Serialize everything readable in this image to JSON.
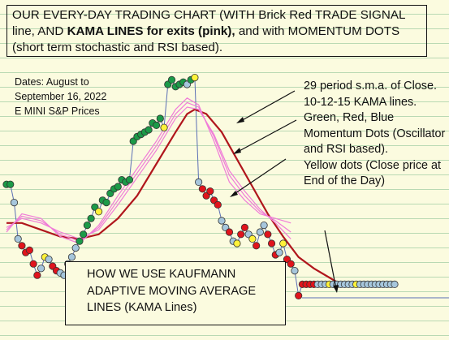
{
  "title": {
    "part1": "OUR EVERY-DAY TRADING CHART (WITH Brick Red TRADE SIGNAL line,",
    "part2": "AND",
    "part3_bold": "KAMA LINES for exits (pink),",
    "part4": "and with MOMENTUM DOTS (short term stochastic and RSI based)."
  },
  "dates": {
    "line1": "Dates: August to",
    "line2": "September 16, 2022",
    "line3": "E MINI S&P Prices"
  },
  "annotations": {
    "sma": "29 period s.m.a. of Close.",
    "kama": "10-12-15 KAMA lines.",
    "dots": "Green, Red, Blue Momentum Dots (Oscillator and RSI based).",
    "yellow": "Yellow dots (Close price at End of the Day)"
  },
  "how_box": "HOW WE USE KAUFMANN ADAPTIVE MOVING AVERAGE LINES (KAMA Lines)",
  "colors": {
    "background": "#fbfbdf",
    "grid": "#b9d9b3",
    "sma_line": "#b0161c",
    "kama_lines": "#f07cd8",
    "price_stem": "#5b6fb5",
    "green": "#1c9a48",
    "red": "#e0141c",
    "blue": "#a6c6dc",
    "yellow": "#fff23a"
  },
  "chart_data": {
    "type": "scatter",
    "title": "",
    "xlabel": "",
    "ylabel": "",
    "note": "",
    "price_dots": [
      {
        "x": 1,
        "y": 0.51,
        "c": "green"
      },
      {
        "x": 2,
        "y": 0.51,
        "c": "green"
      },
      {
        "x": 3,
        "y": 0.43,
        "c": "blue"
      },
      {
        "x": 4,
        "y": 0.27,
        "c": "blue"
      },
      {
        "x": 5,
        "y": 0.24,
        "c": "red"
      },
      {
        "x": 6,
        "y": 0.21,
        "c": "red"
      },
      {
        "x": 7,
        "y": 0.22,
        "c": "red"
      },
      {
        "x": 8,
        "y": 0.16,
        "c": "red"
      },
      {
        "x": 9,
        "y": 0.11,
        "c": "red"
      },
      {
        "x": 10,
        "y": 0.14,
        "c": "blue"
      },
      {
        "x": 11,
        "y": 0.19,
        "c": "yellow"
      },
      {
        "x": 12,
        "y": 0.18,
        "c": "blue"
      },
      {
        "x": 13,
        "y": 0.15,
        "c": "red"
      },
      {
        "x": 14,
        "y": 0.13,
        "c": "red"
      },
      {
        "x": 15,
        "y": 0.12,
        "c": "blue"
      },
      {
        "x": 16,
        "y": 0.11,
        "c": "blue"
      },
      {
        "x": 17,
        "y": 0.16,
        "c": "blue"
      },
      {
        "x": 18,
        "y": 0.19,
        "c": "blue"
      },
      {
        "x": 19,
        "y": 0.23,
        "c": "blue"
      },
      {
        "x": 20,
        "y": 0.26,
        "c": "green"
      },
      {
        "x": 21,
        "y": 0.29,
        "c": "green"
      },
      {
        "x": 22,
        "y": 0.33,
        "c": "green"
      },
      {
        "x": 23,
        "y": 0.36,
        "c": "green"
      },
      {
        "x": 24,
        "y": 0.41,
        "c": "green"
      },
      {
        "x": 25,
        "y": 0.39,
        "c": "yellow"
      },
      {
        "x": 26,
        "y": 0.44,
        "c": "green"
      },
      {
        "x": 27,
        "y": 0.43,
        "c": "green"
      },
      {
        "x": 28,
        "y": 0.47,
        "c": "green"
      },
      {
        "x": 29,
        "y": 0.49,
        "c": "green"
      },
      {
        "x": 30,
        "y": 0.5,
        "c": "green"
      },
      {
        "x": 31,
        "y": 0.53,
        "c": "green"
      },
      {
        "x": 32,
        "y": 0.52,
        "c": "green"
      },
      {
        "x": 33,
        "y": 0.53,
        "c": "green"
      },
      {
        "x": 34,
        "y": 0.7,
        "c": "green"
      },
      {
        "x": 35,
        "y": 0.72,
        "c": "green"
      },
      {
        "x": 36,
        "y": 0.73,
        "c": "green"
      },
      {
        "x": 37,
        "y": 0.74,
        "c": "green"
      },
      {
        "x": 38,
        "y": 0.75,
        "c": "green"
      },
      {
        "x": 39,
        "y": 0.78,
        "c": "green"
      },
      {
        "x": 40,
        "y": 0.77,
        "c": "green"
      },
      {
        "x": 41,
        "y": 0.8,
        "c": "green"
      },
      {
        "x": 42,
        "y": 0.76,
        "c": "yellow"
      },
      {
        "x": 43,
        "y": 0.95,
        "c": "green"
      },
      {
        "x": 44,
        "y": 0.97,
        "c": "green"
      },
      {
        "x": 45,
        "y": 0.94,
        "c": "green"
      },
      {
        "x": 46,
        "y": 0.95,
        "c": "green"
      },
      {
        "x": 47,
        "y": 0.96,
        "c": "green"
      },
      {
        "x": 48,
        "y": 0.95,
        "c": "blue"
      },
      {
        "x": 49,
        "y": 0.97,
        "c": "green"
      },
      {
        "x": 50,
        "y": 0.98,
        "c": "yellow"
      },
      {
        "x": 51,
        "y": 0.52,
        "c": "blue"
      },
      {
        "x": 52,
        "y": 0.49,
        "c": "red"
      },
      {
        "x": 53,
        "y": 0.46,
        "c": "red"
      },
      {
        "x": 54,
        "y": 0.48,
        "c": "red"
      },
      {
        "x": 55,
        "y": 0.44,
        "c": "red"
      },
      {
        "x": 56,
        "y": 0.42,
        "c": "red"
      },
      {
        "x": 57,
        "y": 0.35,
        "c": "blue"
      },
      {
        "x": 58,
        "y": 0.32,
        "c": "blue"
      },
      {
        "x": 59,
        "y": 0.3,
        "c": "red"
      },
      {
        "x": 60,
        "y": 0.26,
        "c": "blue"
      },
      {
        "x": 61,
        "y": 0.25,
        "c": "yellow"
      },
      {
        "x": 62,
        "y": 0.29,
        "c": "red"
      },
      {
        "x": 63,
        "y": 0.32,
        "c": "red"
      },
      {
        "x": 64,
        "y": 0.29,
        "c": "blue"
      },
      {
        "x": 65,
        "y": 0.27,
        "c": "yellow"
      },
      {
        "x": 66,
        "y": 0.24,
        "c": "red"
      },
      {
        "x": 67,
        "y": 0.3,
        "c": "blue"
      },
      {
        "x": 68,
        "y": 0.33,
        "c": "blue"
      },
      {
        "x": 69,
        "y": 0.29,
        "c": "red"
      },
      {
        "x": 70,
        "y": 0.25,
        "c": "red"
      },
      {
        "x": 71,
        "y": 0.2,
        "c": "red"
      },
      {
        "x": 72,
        "y": 0.21,
        "c": "blue"
      },
      {
        "x": 73,
        "y": 0.25,
        "c": "yellow"
      },
      {
        "x": 74,
        "y": 0.18,
        "c": "red"
      },
      {
        "x": 75,
        "y": 0.16,
        "c": "red"
      },
      {
        "x": 76,
        "y": 0.13,
        "c": "blue"
      },
      {
        "x": 77,
        "y": 0.02,
        "c": "red"
      },
      {
        "x": 78,
        "y": 0.07,
        "c": "red"
      },
      {
        "x": 79,
        "y": 0.07,
        "c": "red"
      },
      {
        "x": 80,
        "y": 0.07,
        "c": "red"
      },
      {
        "x": 81,
        "y": 0.07,
        "c": "red"
      },
      {
        "x": 82,
        "y": 0.07,
        "c": "blue"
      },
      {
        "x": 83,
        "y": 0.07,
        "c": "blue"
      },
      {
        "x": 84,
        "y": 0.07,
        "c": "blue"
      },
      {
        "x": 85,
        "y": 0.07,
        "c": "yellow"
      },
      {
        "x": 86,
        "y": 0.07,
        "c": "blue"
      },
      {
        "x": 87,
        "y": 0.07,
        "c": "blue"
      },
      {
        "x": 88,
        "y": 0.07,
        "c": "blue"
      },
      {
        "x": 89,
        "y": 0.07,
        "c": "blue"
      },
      {
        "x": 90,
        "y": 0.07,
        "c": "blue"
      },
      {
        "x": 91,
        "y": 0.07,
        "c": "blue"
      },
      {
        "x": 92,
        "y": 0.07,
        "c": "yellow"
      },
      {
        "x": 93,
        "y": 0.07,
        "c": "blue"
      },
      {
        "x": 94,
        "y": 0.07,
        "c": "blue"
      },
      {
        "x": 95,
        "y": 0.07,
        "c": "blue"
      },
      {
        "x": 96,
        "y": 0.07,
        "c": "blue"
      },
      {
        "x": 97,
        "y": 0.07,
        "c": "blue"
      },
      {
        "x": 98,
        "y": 0.07,
        "c": "blue"
      },
      {
        "x": 99,
        "y": 0.07,
        "c": "blue"
      },
      {
        "x": 100,
        "y": 0.07,
        "c": "blue"
      },
      {
        "x": 101,
        "y": 0.07,
        "c": "blue"
      },
      {
        "x": 102,
        "y": 0.07,
        "c": "blue"
      }
    ],
    "sma": [
      {
        "x": 1,
        "y": 0.34
      },
      {
        "x": 5,
        "y": 0.34
      },
      {
        "x": 10,
        "y": 0.31
      },
      {
        "x": 15,
        "y": 0.28
      },
      {
        "x": 20,
        "y": 0.27
      },
      {
        "x": 25,
        "y": 0.29
      },
      {
        "x": 30,
        "y": 0.36
      },
      {
        "x": 35,
        "y": 0.46
      },
      {
        "x": 40,
        "y": 0.6
      },
      {
        "x": 45,
        "y": 0.74
      },
      {
        "x": 48,
        "y": 0.82
      },
      {
        "x": 50,
        "y": 0.84
      },
      {
        "x": 53,
        "y": 0.82
      },
      {
        "x": 57,
        "y": 0.74
      },
      {
        "x": 61,
        "y": 0.62
      },
      {
        "x": 65,
        "y": 0.5
      },
      {
        "x": 69,
        "y": 0.38
      },
      {
        "x": 73,
        "y": 0.28
      },
      {
        "x": 77,
        "y": 0.19
      },
      {
        "x": 81,
        "y": 0.14
      },
      {
        "x": 85,
        "y": 0.1
      },
      {
        "x": 88,
        "y": 0.07
      },
      {
        "x": 91,
        "y": 0.06
      },
      {
        "x": 94,
        "y": 0.06
      },
      {
        "x": 102,
        "y": 0.06
      }
    ],
    "kama": [
      [
        {
          "x": 1,
          "y": 0.3
        },
        {
          "x": 5,
          "y": 0.38
        },
        {
          "x": 10,
          "y": 0.36
        },
        {
          "x": 15,
          "y": 0.28
        },
        {
          "x": 20,
          "y": 0.25
        },
        {
          "x": 25,
          "y": 0.33
        },
        {
          "x": 30,
          "y": 0.46
        },
        {
          "x": 35,
          "y": 0.58
        },
        {
          "x": 40,
          "y": 0.7
        },
        {
          "x": 45,
          "y": 0.84
        },
        {
          "x": 48,
          "y": 0.89
        },
        {
          "x": 51,
          "y": 0.86
        },
        {
          "x": 55,
          "y": 0.7
        },
        {
          "x": 59,
          "y": 0.52
        },
        {
          "x": 63,
          "y": 0.44
        },
        {
          "x": 67,
          "y": 0.38
        },
        {
          "x": 71,
          "y": 0.36
        },
        {
          "x": 75,
          "y": 0.34
        }
      ],
      [
        {
          "x": 1,
          "y": 0.31
        },
        {
          "x": 5,
          "y": 0.37
        },
        {
          "x": 10,
          "y": 0.35
        },
        {
          "x": 15,
          "y": 0.29
        },
        {
          "x": 20,
          "y": 0.26
        },
        {
          "x": 25,
          "y": 0.32
        },
        {
          "x": 30,
          "y": 0.44
        },
        {
          "x": 35,
          "y": 0.56
        },
        {
          "x": 40,
          "y": 0.68
        },
        {
          "x": 45,
          "y": 0.82
        },
        {
          "x": 48,
          "y": 0.87
        },
        {
          "x": 51,
          "y": 0.85
        },
        {
          "x": 55,
          "y": 0.72
        },
        {
          "x": 59,
          "y": 0.55
        },
        {
          "x": 63,
          "y": 0.46
        },
        {
          "x": 67,
          "y": 0.39
        },
        {
          "x": 71,
          "y": 0.35
        },
        {
          "x": 75,
          "y": 0.3
        }
      ],
      [
        {
          "x": 1,
          "y": 0.32
        },
        {
          "x": 5,
          "y": 0.36
        },
        {
          "x": 10,
          "y": 0.34
        },
        {
          "x": 15,
          "y": 0.3
        },
        {
          "x": 20,
          "y": 0.27
        },
        {
          "x": 25,
          "y": 0.31
        },
        {
          "x": 30,
          "y": 0.42
        },
        {
          "x": 35,
          "y": 0.54
        },
        {
          "x": 40,
          "y": 0.66
        },
        {
          "x": 45,
          "y": 0.8
        },
        {
          "x": 48,
          "y": 0.85
        },
        {
          "x": 51,
          "y": 0.84
        },
        {
          "x": 55,
          "y": 0.73
        },
        {
          "x": 59,
          "y": 0.57
        },
        {
          "x": 63,
          "y": 0.48
        },
        {
          "x": 67,
          "y": 0.4
        },
        {
          "x": 71,
          "y": 0.34
        },
        {
          "x": 75,
          "y": 0.27
        }
      ]
    ]
  }
}
